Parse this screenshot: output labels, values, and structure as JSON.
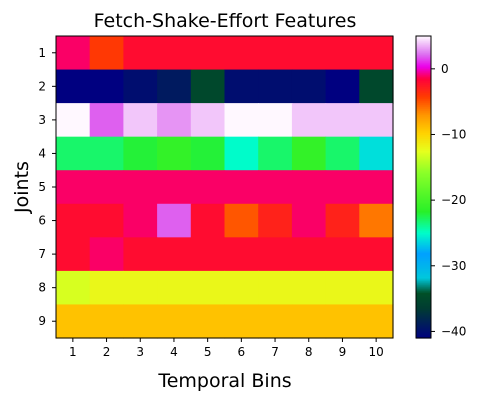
{
  "chart_data": {
    "type": "heatmap",
    "title": "Fetch-Shake-Effort Features",
    "xlabel": "Temporal Bins",
    "ylabel": "Joints",
    "x_categories": [
      "1",
      "2",
      "3",
      "4",
      "5",
      "6",
      "7",
      "8",
      "9",
      "10"
    ],
    "y_categories": [
      "1",
      "2",
      "3",
      "4",
      "5",
      "6",
      "7",
      "8",
      "9"
    ],
    "values": [
      [
        -1,
        -4,
        -2,
        -2,
        -2,
        -2,
        -2,
        -2,
        -2,
        -2
      ],
      [
        -41,
        -42,
        -40,
        -39,
        -35,
        -40,
        -40,
        -40,
        -41,
        -35
      ],
      [
        5,
        2,
        4,
        3,
        4,
        5,
        5,
        4,
        4,
        4
      ],
      [
        -23,
        -23,
        -22,
        -21,
        -22,
        -25,
        -23,
        -21,
        -23,
        -26
      ],
      [
        -1,
        -1,
        -1,
        -1,
        -1,
        -1,
        -1,
        -1,
        -1,
        -1
      ],
      [
        -2,
        -2,
        -1,
        2,
        -2,
        -5,
        -3,
        -1,
        -3,
        -6
      ],
      [
        -2,
        -1,
        -2,
        -2,
        -2,
        -2,
        -2,
        -2,
        -2,
        -2
      ],
      [
        -13,
        -12,
        -12,
        -12,
        -12,
        -12,
        -12,
        -12,
        -12,
        -12
      ],
      [
        -9,
        -9,
        -9,
        -9,
        -9,
        -9,
        -9,
        -9,
        -9,
        -9
      ]
    ],
    "colorbar": {
      "colormap": "gist_ncar",
      "range": [
        -41,
        5
      ],
      "ticks": [
        0,
        -10,
        -20,
        -30,
        -40
      ]
    }
  }
}
